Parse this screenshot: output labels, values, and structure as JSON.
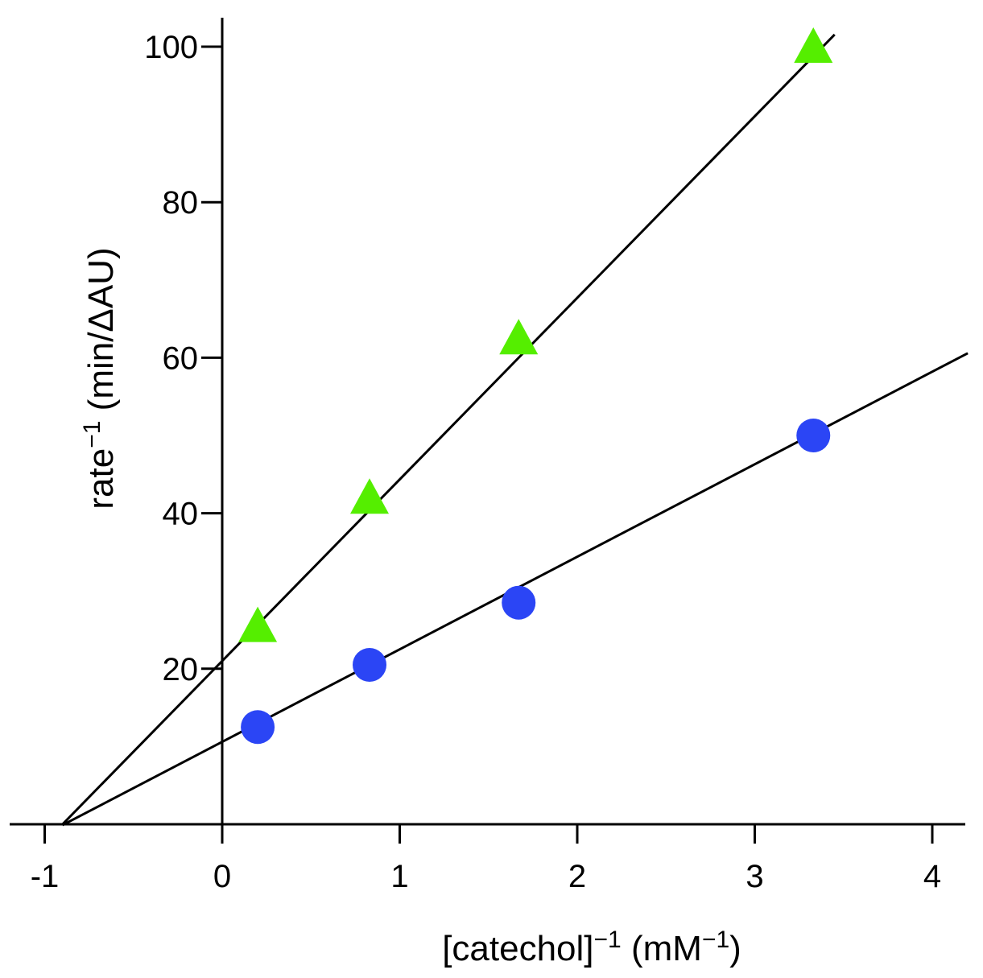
{
  "chart_data": {
    "type": "scatter",
    "title": "",
    "xlabel": {
      "base": "[catechol]",
      "sup": "−1",
      "unit_open": " (mM",
      "unit_sup": "−1",
      "unit_close": ")"
    },
    "ylabel": {
      "base": "rate",
      "sup": "−1",
      "unit": " (min/ΔAU)"
    },
    "xlim": [
      -1.2,
      4.2
    ],
    "ylim": [
      0,
      104
    ],
    "xticks": [
      -1,
      0,
      1,
      2,
      3,
      4
    ],
    "xtick_labels": [
      "-1",
      "0",
      "1",
      "2",
      "3",
      "4"
    ],
    "yticks": [
      20,
      40,
      60,
      80,
      100
    ],
    "ytick_labels": [
      "20",
      "40",
      "60",
      "80",
      "100"
    ],
    "series": [
      {
        "name": "triangles",
        "marker": "triangle",
        "color": "#55ee00",
        "x": [
          0.2,
          0.83,
          1.67,
          3.33
        ],
        "y": [
          25.5,
          42,
          62.5,
          100
        ],
        "fit": {
          "slope": 23.35,
          "intercept": 21.0,
          "x_range": [
            -0.9,
            3.45
          ]
        }
      },
      {
        "name": "circles",
        "marker": "circle",
        "color": "#2b45f5",
        "x": [
          0.2,
          0.83,
          1.67,
          3.33
        ],
        "y": [
          12.5,
          20.5,
          28.5,
          50
        ],
        "fit": {
          "slope": 11.9,
          "intercept": 10.6,
          "x_range": [
            -0.9,
            4.2
          ]
        }
      }
    ]
  }
}
